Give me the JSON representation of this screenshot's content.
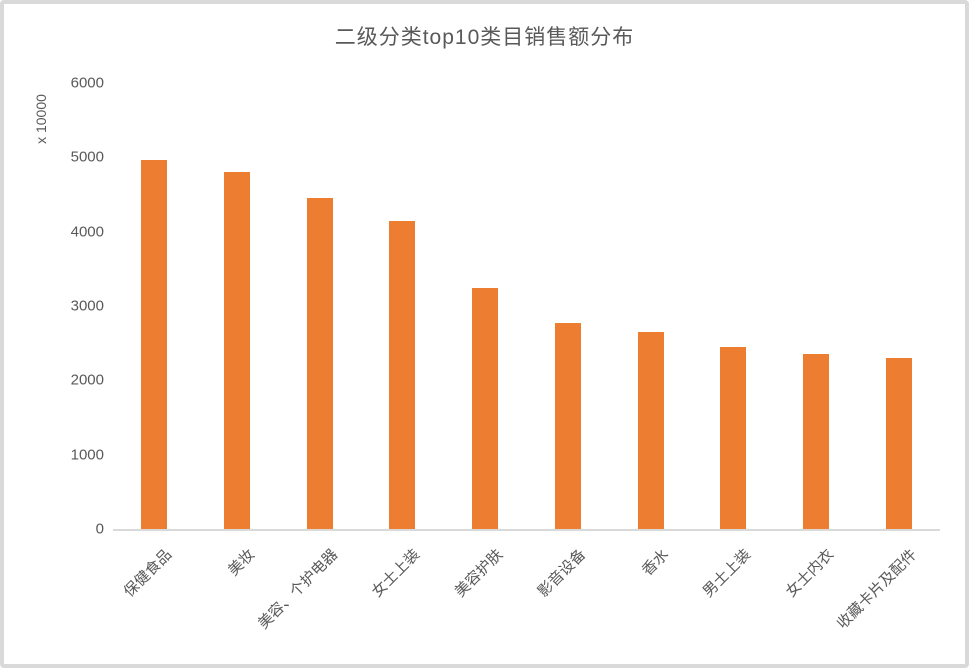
{
  "chart_data": {
    "type": "bar",
    "title": "二级分类top10类目销售额分布",
    "unit_label": "x 10000",
    "categories": [
      "保健食品",
      "美妆",
      "美容、个护电器",
      "女士上装",
      "美容护肤",
      "影音设备",
      "香水",
      "男士上装",
      "女士内衣",
      "收藏卡片及配件"
    ],
    "values": [
      4970,
      4800,
      4450,
      4140,
      3240,
      2770,
      2650,
      2450,
      2350,
      2300
    ],
    "xlabel": "",
    "ylabel": "x 10000",
    "ylim": [
      0,
      6000
    ],
    "yticks": [
      0,
      1000,
      2000,
      3000,
      4000,
      5000,
      6000
    ],
    "grid": false,
    "legend_position": "none",
    "bar_color": "#ED7D31",
    "text_color": "#595959",
    "axis_line_color": "#D9D9D9",
    "border_color": "#D9D9D9"
  }
}
